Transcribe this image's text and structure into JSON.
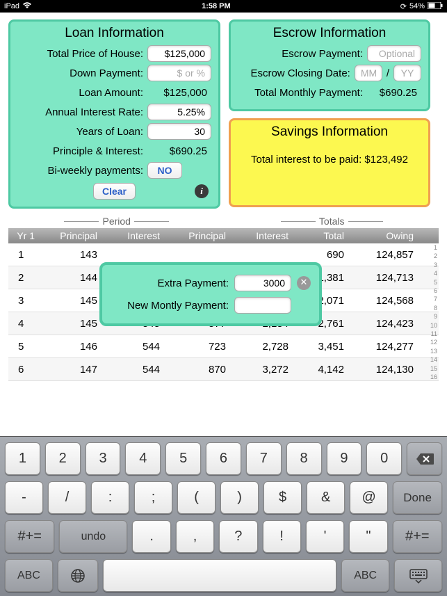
{
  "status": {
    "device": "iPad",
    "time": "1:58 PM",
    "battery": "54%"
  },
  "loan": {
    "title": "Loan Information",
    "price_label": "Total Price of House:",
    "price_value": "$125,000",
    "down_label": "Down Payment:",
    "down_placeholder": "$ or %",
    "amount_label": "Loan Amount:",
    "amount_value": "$125,000",
    "rate_label": "Annual Interest Rate:",
    "rate_value": "5.25%",
    "years_label": "Years of Loan:",
    "years_value": "30",
    "pi_label": "Principle & Interest:",
    "pi_value": "$690.25",
    "biweekly_label": "Bi-weekly payments:",
    "biweekly_btn": "NO",
    "clear_btn": "Clear"
  },
  "escrow": {
    "title": "Escrow Information",
    "payment_label": "Escrow Payment:",
    "payment_placeholder": "Optional",
    "closing_label": "Escrow Closing Date:",
    "mm_placeholder": "MM",
    "yy_placeholder": "YY",
    "slash": "/",
    "total_label": "Total Monthly Payment:",
    "total_value": "$690.25"
  },
  "savings": {
    "title": "Savings Information",
    "text": "Total interest to be paid: $123,492"
  },
  "popup": {
    "extra_label": "Extra Payment:",
    "extra_value": "3000",
    "new_label": "New Montly Payment:"
  },
  "table": {
    "group_period": "Period",
    "group_totals": "Totals",
    "h_yr": "Yr 1",
    "h_prin": "Principal",
    "h_int": "Interest",
    "h_tot": "Total",
    "h_owe": "Owing",
    "rows": [
      {
        "m": "1",
        "p1": "143",
        "i1": "",
        "p2": "",
        "i2": "",
        "t": "690",
        "o": "124,857"
      },
      {
        "m": "2",
        "p1": "144",
        "i1": "",
        "p2": "",
        "i2": "",
        "t": "1,381",
        "o": "124,713"
      },
      {
        "m": "3",
        "p1": "145",
        "i1": "",
        "p2": "",
        "i2": "",
        "t": "2,071",
        "o": "124,568"
      },
      {
        "m": "4",
        "p1": "145",
        "i1": "545",
        "p2": "577",
        "i2": "2,184",
        "t": "2,761",
        "o": "124,423"
      },
      {
        "m": "5",
        "p1": "146",
        "i1": "544",
        "p2": "723",
        "i2": "2,728",
        "t": "3,451",
        "o": "124,277"
      },
      {
        "m": "6",
        "p1": "147",
        "i1": "544",
        "p2": "870",
        "i2": "3,272",
        "t": "4,142",
        "o": "124,130"
      }
    ],
    "index": [
      "1",
      "2",
      "3",
      "4",
      "5",
      "6",
      "7",
      "8",
      "9",
      "10",
      "11",
      "12",
      "13",
      "14",
      "15",
      "16"
    ]
  },
  "keyboard": {
    "r1": [
      "1",
      "2",
      "3",
      "4",
      "5",
      "6",
      "7",
      "8",
      "9",
      "0"
    ],
    "r2": [
      "-",
      "/",
      ":",
      ";",
      "(",
      ")",
      "$",
      "&",
      "@"
    ],
    "done": "Done",
    "sym": "#+=",
    "undo": "undo",
    "r3": [
      ".",
      ",",
      "?",
      "!",
      "'",
      "\""
    ],
    "abc": "ABC"
  }
}
